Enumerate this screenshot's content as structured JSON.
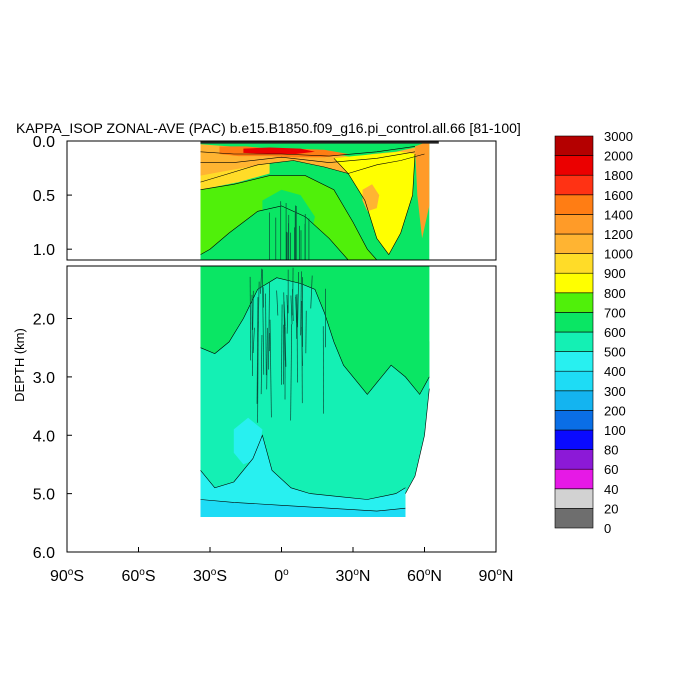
{
  "chart_data": {
    "type": "heatmap",
    "title": "KAPPA_ISOP ZONAL-AVE (PAC) b.e15.B1850.f09_g16.pi_control.all.66 [81-100]",
    "ylabel": "DEPTH (km)",
    "xlabel": "",
    "x_range": [
      -90,
      90
    ],
    "x_ticks": [
      {
        "value": -90,
        "label": "90",
        "suffix": "S"
      },
      {
        "value": -60,
        "label": "60",
        "suffix": "S"
      },
      {
        "value": -30,
        "label": "30",
        "suffix": "S"
      },
      {
        "value": 0,
        "label": "0",
        "suffix": ""
      },
      {
        "value": 30,
        "label": "30",
        "suffix": "N"
      },
      {
        "value": 60,
        "label": "60",
        "suffix": "N"
      },
      {
        "value": 90,
        "label": "90",
        "suffix": "N"
      }
    ],
    "upper_panel": {
      "ylim": [
        0.0,
        1.1
      ],
      "ticks": [
        "0.0",
        "0.5",
        "1.0"
      ],
      "tick_values": [
        0.0,
        0.5,
        1.0
      ]
    },
    "lower_panel": {
      "ylim": [
        1.1,
        6.0
      ],
      "ticks": [
        "2.0",
        "3.0",
        "4.0",
        "5.0",
        "6.0"
      ],
      "tick_values": [
        2.0,
        3.0,
        4.0,
        5.0,
        6.0
      ]
    },
    "data_extent": {
      "lat_south": -34,
      "lat_north": 62,
      "max_depth_km": 5.4
    },
    "colorbar": {
      "levels": [
        "0",
        "20",
        "40",
        "60",
        "80",
        "100",
        "200",
        "300",
        "400",
        "500",
        "600",
        "700",
        "800",
        "900",
        "1000",
        "1200",
        "1400",
        "1600",
        "1800",
        "2000",
        "3000"
      ],
      "colors": [
        "#6e6e6e",
        "#d2d2d2",
        "#e619e6",
        "#8c19d7",
        "#0a0aff",
        "#0a6ee6",
        "#14b4f0",
        "#1edcf5",
        "#28f0f0",
        "#14f0b4",
        "#0ae664",
        "#50f00a",
        "#ffff00",
        "#ffdc28",
        "#ffb432",
        "#ff9b28",
        "#ff7d14",
        "#ff3214",
        "#eb0000",
        "#b40000"
      ]
    },
    "regions": [
      {
        "name": "upper-bg",
        "panel": "upper",
        "color": "#0ae664",
        "poly": [
          [
            -34,
            0
          ],
          [
            62,
            0
          ],
          [
            62,
            1.1
          ],
          [
            -34,
            1.1
          ]
        ]
      },
      {
        "name": "upper-orange-band",
        "panel": "upper",
        "color": "#ffb432",
        "poly": [
          [
            -34,
            0.03
          ],
          [
            -22,
            0.05
          ],
          [
            -10,
            0.08
          ],
          [
            0,
            0.09
          ],
          [
            12,
            0.1
          ],
          [
            22,
            0.12
          ],
          [
            30,
            0.15
          ],
          [
            38,
            0.12
          ],
          [
            48,
            0.1
          ],
          [
            56,
            0.06
          ],
          [
            60,
            0.03
          ],
          [
            60,
            0.12
          ],
          [
            50,
            0.18
          ],
          [
            40,
            0.22
          ],
          [
            28,
            0.3
          ],
          [
            18,
            0.24
          ],
          [
            5,
            0.18
          ],
          [
            -10,
            0.22
          ],
          [
            -22,
            0.3
          ],
          [
            -34,
            0.38
          ]
        ]
      },
      {
        "name": "upper-deep-orange",
        "panel": "upper",
        "color": "#ff7d14",
        "poly": [
          [
            -26,
            0.05
          ],
          [
            -15,
            0.05
          ],
          [
            -5,
            0.07
          ],
          [
            5,
            0.07
          ],
          [
            18,
            0.08
          ],
          [
            28,
            0.12
          ],
          [
            18,
            0.15
          ],
          [
            5,
            0.15
          ],
          [
            -5,
            0.14
          ],
          [
            -18,
            0.14
          ],
          [
            -26,
            0.12
          ]
        ]
      },
      {
        "name": "upper-red-core",
        "panel": "upper",
        "color": "#eb0000",
        "poly": [
          [
            -16,
            0.07
          ],
          [
            -5,
            0.06
          ],
          [
            8,
            0.07
          ],
          [
            14,
            0.1
          ],
          [
            6,
            0.12
          ],
          [
            -6,
            0.12
          ],
          [
            -16,
            0.11
          ]
        ]
      },
      {
        "name": "upper-yellow-north",
        "panel": "upper",
        "color": "#ffff00",
        "poly": [
          [
            22,
            0.16
          ],
          [
            30,
            0.14
          ],
          [
            40,
            0.12
          ],
          [
            50,
            0.1
          ],
          [
            56,
            0.12
          ],
          [
            55,
            0.5
          ],
          [
            50,
            0.85
          ],
          [
            45,
            1.05
          ],
          [
            40,
            0.9
          ],
          [
            35,
            0.55
          ],
          [
            28,
            0.3
          ]
        ]
      },
      {
        "name": "upper-yellow-south",
        "panel": "upper",
        "color": "#ffdc28",
        "poly": [
          [
            -34,
            0.32
          ],
          [
            -24,
            0.28
          ],
          [
            -14,
            0.24
          ],
          [
            -5,
            0.2
          ],
          [
            -5,
            0.3
          ],
          [
            -18,
            0.38
          ],
          [
            -34,
            0.45
          ]
        ]
      },
      {
        "name": "upper-light-orange-lobe",
        "panel": "upper",
        "color": "#ffb432",
        "poly": [
          [
            34,
            0.45
          ],
          [
            38,
            0.4
          ],
          [
            41,
            0.5
          ],
          [
            40,
            0.62
          ],
          [
            36,
            0.65
          ],
          [
            34,
            0.55
          ]
        ]
      },
      {
        "name": "upper-green-light",
        "panel": "upper",
        "color": "#50f00a",
        "poly": [
          [
            -34,
            0.45
          ],
          [
            -20,
            0.4
          ],
          [
            -5,
            0.32
          ],
          [
            10,
            0.32
          ],
          [
            22,
            0.45
          ],
          [
            30,
            0.75
          ],
          [
            36,
            1.0
          ],
          [
            40,
            1.1
          ],
          [
            28,
            1.1
          ],
          [
            20,
            0.9
          ],
          [
            10,
            0.7
          ],
          [
            0,
            0.6
          ],
          [
            -10,
            0.65
          ],
          [
            -22,
            0.85
          ],
          [
            -30,
            1.0
          ],
          [
            -34,
            1.05
          ]
        ]
      },
      {
        "name": "upper-tropical-green",
        "panel": "upper",
        "color": "#0ae664",
        "poly": [
          [
            -8,
            0.55
          ],
          [
            0,
            0.45
          ],
          [
            8,
            0.5
          ],
          [
            14,
            0.7
          ],
          [
            10,
            1.1
          ],
          [
            -8,
            1.1
          ]
        ]
      },
      {
        "name": "upper-orange-north-edge",
        "panel": "upper",
        "color": "#ff9b28",
        "poly": [
          [
            56,
            0.05
          ],
          [
            62,
            0.0
          ],
          [
            62,
            0.6
          ],
          [
            59,
            0.9
          ],
          [
            57,
            0.5
          ]
        ]
      },
      {
        "name": "lower-bg",
        "panel": "lower",
        "color": "#14f0b4",
        "poly": [
          [
            -34,
            1.1
          ],
          [
            62,
            1.1
          ],
          [
            62,
            3.2
          ],
          [
            60,
            4.0
          ],
          [
            56,
            4.7
          ],
          [
            52,
            5.0
          ],
          [
            52,
            5.4
          ],
          [
            -34,
            5.4
          ]
        ]
      },
      {
        "name": "lower-green-upper",
        "panel": "lower",
        "color": "#0ae664",
        "poly": [
          [
            -34,
            1.1
          ],
          [
            62,
            1.1
          ],
          [
            62,
            3.0
          ],
          [
            58,
            3.3
          ],
          [
            52,
            3.0
          ],
          [
            46,
            2.8
          ],
          [
            40,
            3.1
          ],
          [
            36,
            3.3
          ],
          [
            32,
            3.1
          ],
          [
            26,
            2.8
          ],
          [
            22,
            2.4
          ],
          [
            18,
            1.9
          ],
          [
            14,
            1.5
          ],
          [
            8,
            1.4
          ],
          [
            -2,
            1.3
          ],
          [
            -10,
            1.5
          ],
          [
            -16,
            2.0
          ],
          [
            -22,
            2.4
          ],
          [
            -28,
            2.6
          ],
          [
            -34,
            2.5
          ]
        ]
      },
      {
        "name": "lower-cyan-bottom",
        "panel": "lower",
        "color": "#28f0f0",
        "poly": [
          [
            -34,
            4.6
          ],
          [
            -28,
            4.9
          ],
          [
            -20,
            4.8
          ],
          [
            -12,
            4.4
          ],
          [
            -8,
            4.0
          ],
          [
            -4,
            4.6
          ],
          [
            4,
            4.9
          ],
          [
            12,
            5.0
          ],
          [
            24,
            5.05
          ],
          [
            36,
            5.1
          ],
          [
            48,
            5.0
          ],
          [
            52,
            4.9
          ],
          [
            52,
            5.4
          ],
          [
            -34,
            5.4
          ]
        ]
      },
      {
        "name": "lower-cyan-blob",
        "panel": "lower",
        "color": "#28f0f0",
        "poly": [
          [
            -20,
            3.9
          ],
          [
            -14,
            3.7
          ],
          [
            -8,
            3.9
          ],
          [
            -10,
            4.4
          ],
          [
            -16,
            4.5
          ],
          [
            -20,
            4.3
          ]
        ]
      },
      {
        "name": "lower-deep-cyan",
        "panel": "lower",
        "color": "#1edcf5",
        "poly": [
          [
            -34,
            5.1
          ],
          [
            -20,
            5.15
          ],
          [
            0,
            5.2
          ],
          [
            20,
            5.25
          ],
          [
            40,
            5.3
          ],
          [
            52,
            5.25
          ],
          [
            52,
            5.4
          ],
          [
            -34,
            5.4
          ]
        ]
      },
      {
        "name": "lower-ne-green",
        "panel": "lower",
        "color": "#0ae664",
        "poly": [
          [
            56,
            2.6
          ],
          [
            60,
            2.2
          ],
          [
            62,
            2.4
          ],
          [
            62,
            3.0
          ],
          [
            58,
            3.1
          ]
        ]
      }
    ],
    "contours": [
      {
        "panel": "upper",
        "points": [
          [
            -34,
            0.38
          ],
          [
            -22,
            0.3
          ],
          [
            -10,
            0.22
          ],
          [
            5,
            0.18
          ],
          [
            18,
            0.24
          ],
          [
            28,
            0.3
          ],
          [
            40,
            0.22
          ],
          [
            50,
            0.18
          ],
          [
            60,
            0.12
          ]
        ]
      },
      {
        "panel": "upper",
        "points": [
          [
            -34,
            0.45
          ],
          [
            -20,
            0.4
          ],
          [
            -5,
            0.32
          ],
          [
            10,
            0.32
          ],
          [
            22,
            0.45
          ],
          [
            30,
            0.75
          ],
          [
            36,
            1.0
          ],
          [
            40,
            1.1
          ]
        ]
      },
      {
        "panel": "upper",
        "points": [
          [
            -34,
            1.05
          ],
          [
            -30,
            1.0
          ],
          [
            -22,
            0.85
          ],
          [
            -10,
            0.65
          ],
          [
            0,
            0.6
          ],
          [
            10,
            0.7
          ],
          [
            20,
            0.9
          ],
          [
            28,
            1.1
          ]
        ]
      },
      {
        "panel": "upper",
        "points": [
          [
            22,
            0.16
          ],
          [
            28,
            0.3
          ],
          [
            35,
            0.55
          ],
          [
            40,
            0.9
          ],
          [
            45,
            1.05
          ],
          [
            50,
            0.85
          ],
          [
            55,
            0.5
          ],
          [
            56,
            0.12
          ]
        ]
      },
      {
        "panel": "upper",
        "points": [
          [
            -34,
            0.1
          ],
          [
            -20,
            0.12
          ],
          [
            0,
            0.12
          ],
          [
            20,
            0.14
          ],
          [
            40,
            0.1
          ],
          [
            56,
            0.05
          ]
        ]
      },
      {
        "panel": "upper",
        "points": [
          [
            -34,
            0.2
          ],
          [
            -20,
            0.2
          ],
          [
            0,
            0.15
          ],
          [
            20,
            0.2
          ],
          [
            40,
            0.16
          ],
          [
            56,
            0.1
          ]
        ]
      },
      {
        "panel": "lower",
        "points": [
          [
            -34,
            2.5
          ],
          [
            -28,
            2.6
          ],
          [
            -22,
            2.4
          ],
          [
            -16,
            2.0
          ],
          [
            -10,
            1.5
          ],
          [
            -2,
            1.3
          ],
          [
            8,
            1.4
          ],
          [
            14,
            1.5
          ],
          [
            18,
            1.9
          ],
          [
            22,
            2.4
          ],
          [
            26,
            2.8
          ],
          [
            32,
            3.1
          ],
          [
            36,
            3.3
          ],
          [
            40,
            3.1
          ],
          [
            46,
            2.8
          ],
          [
            52,
            3.0
          ],
          [
            58,
            3.3
          ],
          [
            62,
            3.0
          ]
        ]
      },
      {
        "panel": "lower",
        "points": [
          [
            -34,
            4.6
          ],
          [
            -28,
            4.9
          ],
          [
            -20,
            4.8
          ],
          [
            -12,
            4.4
          ],
          [
            -8,
            4.0
          ],
          [
            -4,
            4.6
          ],
          [
            4,
            4.9
          ],
          [
            12,
            5.0
          ],
          [
            24,
            5.05
          ],
          [
            36,
            5.1
          ],
          [
            48,
            5.0
          ],
          [
            52,
            4.9
          ]
        ]
      },
      {
        "panel": "lower",
        "points": [
          [
            -34,
            5.1
          ],
          [
            -20,
            5.15
          ],
          [
            0,
            5.2
          ],
          [
            20,
            5.25
          ],
          [
            40,
            5.3
          ],
          [
            52,
            5.25
          ]
        ]
      },
      {
        "panel": "lower",
        "points": [
          [
            62,
            3.2
          ],
          [
            60,
            4.0
          ],
          [
            56,
            4.7
          ],
          [
            52,
            5.0
          ]
        ]
      }
    ]
  }
}
